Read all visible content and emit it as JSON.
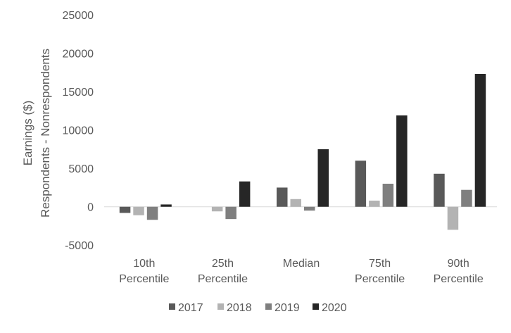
{
  "chart_data": {
    "type": "bar",
    "title": "",
    "ylabel_lines": [
      "Earnings ($)",
      "Respondents - Nonrespondents"
    ],
    "categories": [
      [
        "10th",
        "Percentile"
      ],
      [
        "25th",
        "Percentile"
      ],
      [
        "Median"
      ],
      [
        "75th",
        "Percentile"
      ],
      [
        "90th",
        "Percentile"
      ]
    ],
    "ylim": [
      -5000,
      25000
    ],
    "yticks": [
      "25000",
      "20000",
      "15000",
      "10000",
      "5000",
      "0",
      "-5000"
    ],
    "ytick_values": [
      25000,
      20000,
      15000,
      10000,
      5000,
      0,
      -5000
    ],
    "grid": false,
    "legend_position": "bottom",
    "series": [
      {
        "name": "2017",
        "color": "#595959",
        "values": [
          -800,
          0,
          2500,
          6000,
          4300
        ]
      },
      {
        "name": "2018",
        "color": "#b3b3b3",
        "values": [
          -1100,
          -600,
          1000,
          800,
          -3000
        ]
      },
      {
        "name": "2019",
        "color": "#7f7f7f",
        "values": [
          -1700,
          -1600,
          -500,
          3000,
          2200
        ]
      },
      {
        "name": "2020",
        "color": "#262626",
        "values": [
          300,
          3300,
          7500,
          11900,
          17300
        ]
      }
    ]
  }
}
